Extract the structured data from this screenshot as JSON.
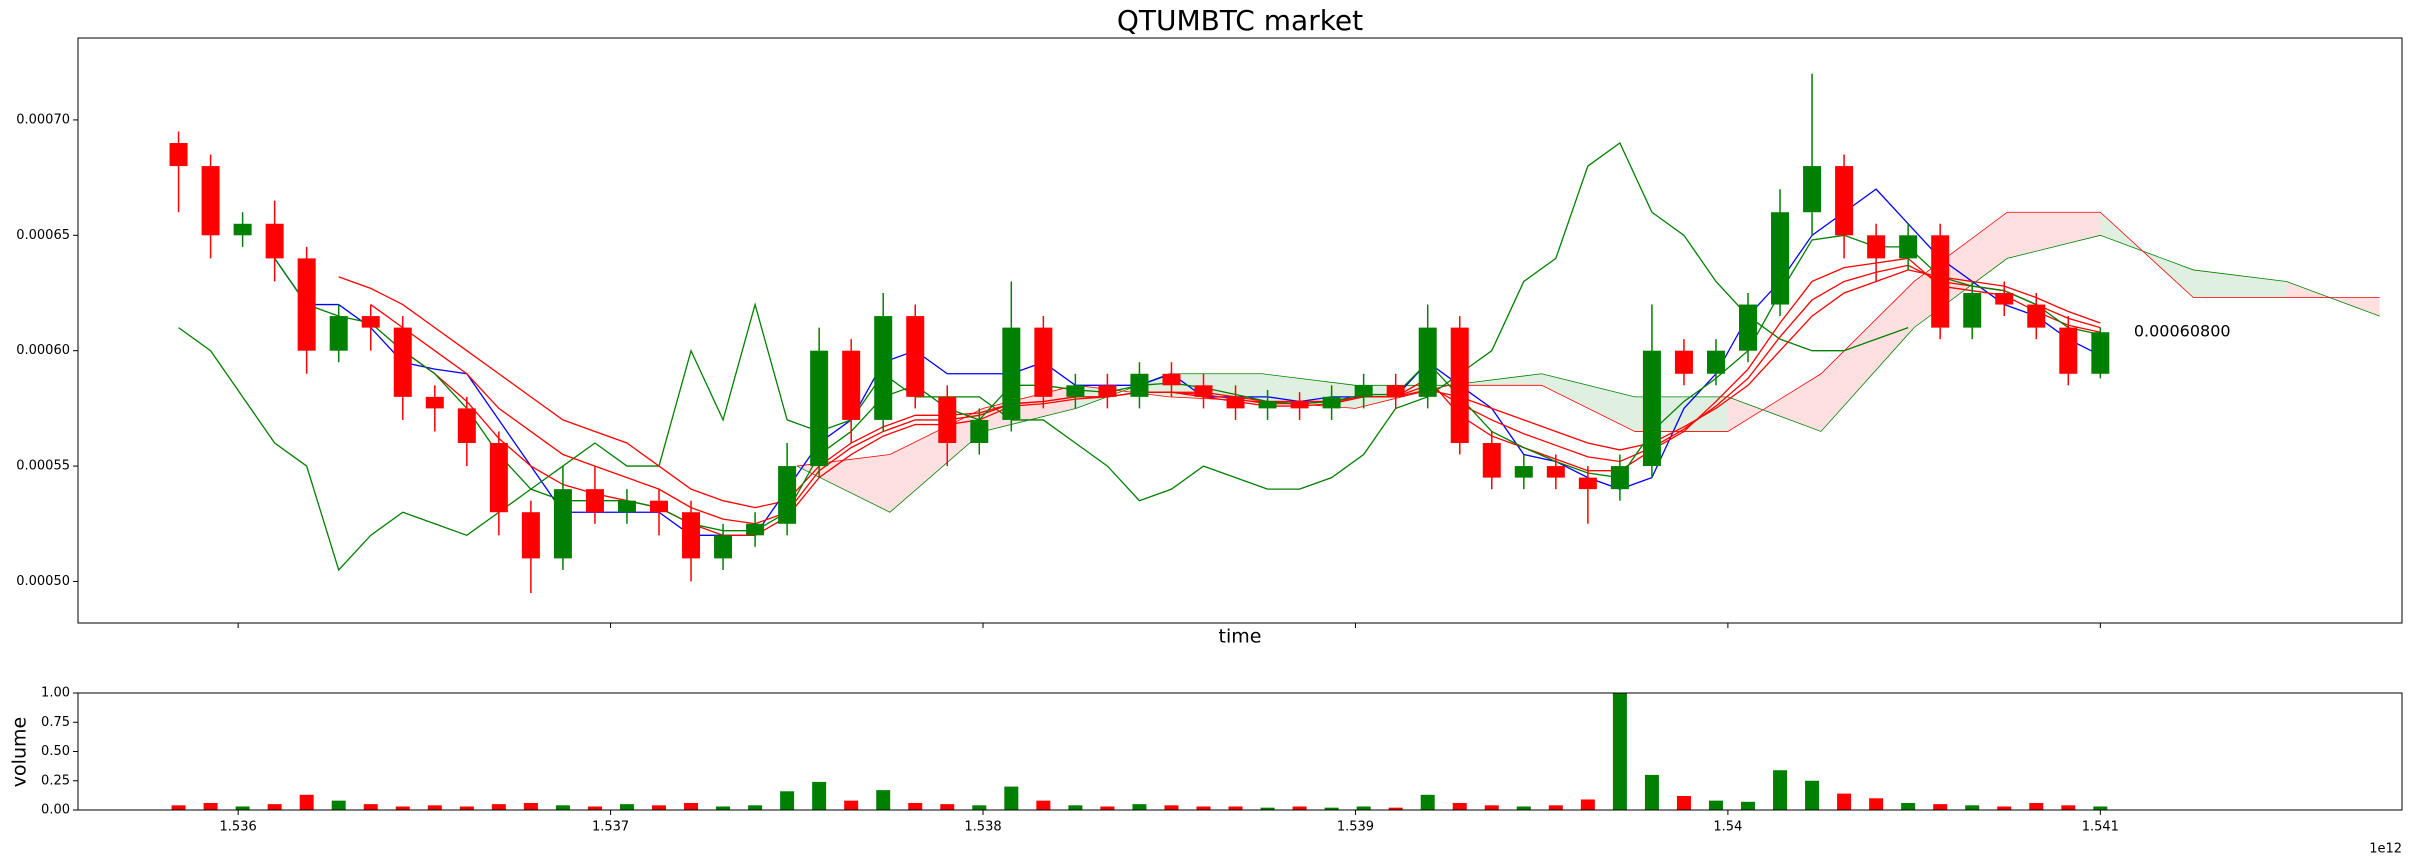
{
  "chart_data": [
    {
      "type": "candlestick",
      "title": "QTUMBTC market",
      "xlabel": "time",
      "xlim": [
        1.53557,
        1.54181
      ],
      "xticks": [
        1.536,
        1.537,
        1.538,
        1.539,
        1.54,
        1.541
      ],
      "ylim": [
        0.000482,
        0.0007355
      ],
      "yticks": [
        {
          "value": 0.0005,
          "label": "0.00050"
        },
        {
          "value": 0.00055,
          "label": "0.00055"
        },
        {
          "value": 0.0006,
          "label": "0.00060"
        },
        {
          "value": 0.00065,
          "label": "0.00065"
        },
        {
          "value": 0.0007,
          "label": "0.00070"
        }
      ],
      "up_color": "#008000",
      "down_color": "#ff0000",
      "x": [
        1.53584,
        1.535926,
        1.536012,
        1.536098,
        1.536184,
        1.53627,
        1.536356,
        1.536442,
        1.536528,
        1.536614,
        1.5367,
        1.536786,
        1.536872,
        1.536958,
        1.537044,
        1.53713,
        1.537216,
        1.537302,
        1.537388,
        1.537474,
        1.53756,
        1.537646,
        1.537732,
        1.537818,
        1.537904,
        1.53799,
        1.538076,
        1.538162,
        1.538248,
        1.538334,
        1.53842,
        1.538506,
        1.538592,
        1.538678,
        1.538764,
        1.53885,
        1.538936,
        1.539022,
        1.539108,
        1.539194,
        1.53928,
        1.539366,
        1.539452,
        1.539538,
        1.539624,
        1.53971,
        1.539796,
        1.539882,
        1.539968,
        1.540054,
        1.54014,
        1.540226,
        1.540312,
        1.540398,
        1.540484,
        1.54057,
        1.540656,
        1.540742,
        1.540828,
        1.540914,
        1.541
      ],
      "open": [
        0.00069,
        0.00068,
        0.00065,
        0.000655,
        0.00064,
        0.0006,
        0.000615,
        0.00061,
        0.00058,
        0.000575,
        0.00056,
        0.00053,
        0.00051,
        0.00054,
        0.00053,
        0.000535,
        0.00053,
        0.00051,
        0.00052,
        0.000525,
        0.00055,
        0.0006,
        0.00057,
        0.000615,
        0.00058,
        0.00056,
        0.00057,
        0.00061,
        0.00058,
        0.000585,
        0.00058,
        0.00059,
        0.000585,
        0.00058,
        0.000575,
        0.000578,
        0.000575,
        0.00058,
        0.000585,
        0.00058,
        0.00061,
        0.00056,
        0.000545,
        0.00055,
        0.000545,
        0.00054,
        0.00055,
        0.0006,
        0.00059,
        0.0006,
        0.00062,
        0.00066,
        0.00068,
        0.00065,
        0.00064,
        0.00065,
        0.00061,
        0.000625,
        0.00062,
        0.00061,
        0.00059
      ],
      "close": [
        0.00068,
        0.00065,
        0.000655,
        0.00064,
        0.0006,
        0.000615,
        0.00061,
        0.00058,
        0.000575,
        0.00056,
        0.00053,
        0.00051,
        0.00054,
        0.00053,
        0.000535,
        0.00053,
        0.00051,
        0.00052,
        0.000525,
        0.00055,
        0.0006,
        0.00057,
        0.000615,
        0.00058,
        0.00056,
        0.00057,
        0.00061,
        0.00058,
        0.000585,
        0.00058,
        0.00059,
        0.000585,
        0.00058,
        0.000575,
        0.000578,
        0.000575,
        0.00058,
        0.000585,
        0.00058,
        0.00061,
        0.00056,
        0.000545,
        0.00055,
        0.000545,
        0.00054,
        0.00055,
        0.0006,
        0.00059,
        0.0006,
        0.00062,
        0.00066,
        0.00068,
        0.00065,
        0.00064,
        0.00065,
        0.00061,
        0.000625,
        0.00062,
        0.00061,
        0.00059,
        0.000608
      ],
      "high": [
        0.000695,
        0.000685,
        0.00066,
        0.000665,
        0.000645,
        0.00062,
        0.00062,
        0.000615,
        0.000585,
        0.00058,
        0.000565,
        0.000535,
        0.00055,
        0.00055,
        0.00054,
        0.00054,
        0.000535,
        0.000525,
        0.00053,
        0.00056,
        0.00061,
        0.000605,
        0.000625,
        0.00062,
        0.000585,
        0.000575,
        0.00063,
        0.000615,
        0.00059,
        0.00059,
        0.000595,
        0.000595,
        0.00059,
        0.000585,
        0.000583,
        0.000582,
        0.000585,
        0.00059,
        0.00059,
        0.00062,
        0.000615,
        0.000565,
        0.000555,
        0.000555,
        0.00055,
        0.000555,
        0.00062,
        0.000605,
        0.000605,
        0.000625,
        0.00067,
        0.00072,
        0.000685,
        0.000655,
        0.000655,
        0.000655,
        0.00063,
        0.00063,
        0.000625,
        0.000615,
        0.00061
      ],
      "low": [
        0.00066,
        0.00064,
        0.000645,
        0.00063,
        0.00059,
        0.000595,
        0.0006,
        0.00057,
        0.000565,
        0.00055,
        0.00052,
        0.000495,
        0.000505,
        0.000525,
        0.000525,
        0.00052,
        0.0005,
        0.000505,
        0.000515,
        0.00052,
        0.000545,
        0.00056,
        0.000565,
        0.000575,
        0.00055,
        0.000555,
        0.000565,
        0.000575,
        0.000575,
        0.000575,
        0.000575,
        0.00058,
        0.000575,
        0.00057,
        0.00057,
        0.00057,
        0.00057,
        0.000575,
        0.000575,
        0.000575,
        0.000555,
        0.00054,
        0.00054,
        0.00054,
        0.000525,
        0.000535,
        0.000545,
        0.000585,
        0.000585,
        0.000595,
        0.000615,
        0.00065,
        0.00064,
        0.00063,
        0.000635,
        0.000605,
        0.000605,
        0.000615,
        0.000605,
        0.000585,
        0.000588
      ],
      "lines": [
        {
          "color": "#0000ff",
          "values": [
            null,
            null,
            null,
            0.00064,
            0.00062,
            0.00062,
            0.00061,
            0.000595,
            0.000592,
            0.00059,
            0.00057,
            0.00055,
            0.00053,
            0.00053,
            0.00053,
            0.00053,
            0.00052,
            0.00052,
            0.00052,
            0.00054,
            0.00056,
            0.00057,
            0.000595,
            0.0006,
            0.00059,
            0.00059,
            0.00059,
            0.000595,
            0.000585,
            0.000585,
            0.000585,
            0.00059,
            0.00058,
            0.00058,
            0.00058,
            0.000578,
            0.00058,
            0.00058,
            0.00058,
            0.000595,
            0.000585,
            0.000575,
            0.000555,
            0.000552,
            0.000545,
            0.00054,
            0.000545,
            0.000575,
            0.00059,
            0.000615,
            0.00063,
            0.00065,
            0.00066,
            0.00067,
            0.000655,
            0.00064,
            0.00063,
            0.00062,
            0.000615,
            0.000605,
            0.000598
          ]
        },
        {
          "color": "#008000",
          "values": [
            0.00061,
            0.0006,
            0.00058,
            0.00056,
            0.00055,
            0.000505,
            0.00052,
            0.00053,
            0.000525,
            0.00052,
            0.00053,
            0.00054,
            0.00055,
            0.00056,
            0.00055,
            0.00055,
            0.0006,
            0.00057,
            0.00062,
            0.00057,
            0.000565,
            0.00057,
            0.00059,
            0.00058,
            0.00058,
            0.00058,
            0.00057,
            0.00057,
            0.00056,
            0.00055,
            0.000535,
            0.00054,
            0.00055,
            0.000545,
            0.00054,
            0.00054,
            0.000545,
            0.000555,
            0.000575,
            0.00058,
            0.00059,
            0.0006,
            0.00063,
            0.00064,
            0.00068,
            0.00069,
            0.00066,
            0.00065,
            0.00063,
            0.000615,
            0.000605,
            0.0006,
            0.0006,
            0.000605,
            0.00061,
            null,
            null,
            null,
            null,
            null,
            null
          ]
        },
        {
          "color": "#ff0000",
          "values": [
            null,
            null,
            null,
            null,
            null,
            0.000632,
            0.000627,
            0.00062,
            0.00061,
            0.0006,
            0.00059,
            0.00058,
            0.00057,
            0.000565,
            0.00056,
            0.00055,
            0.00054,
            0.000535,
            0.000532,
            0.000535,
            0.00055,
            0.00056,
            0.000567,
            0.000572,
            0.000572,
            0.000573,
            0.000577,
            0.000578,
            0.00058,
            0.00058,
            0.000582,
            0.000582,
            0.000582,
            0.00058,
            0.000578,
            0.000578,
            0.000578,
            0.00058,
            0.00058,
            0.000583,
            0.00058,
            0.000575,
            0.00057,
            0.000565,
            0.00056,
            0.000557,
            0.00056,
            0.000567,
            0.000575,
            0.000585,
            0.0006,
            0.000615,
            0.000625,
            0.00063,
            0.000635,
            0.000632,
            0.00063,
            0.000628,
            0.000623,
            0.000617,
            0.000612
          ]
        },
        {
          "color": "#ff0000",
          "values": [
            null,
            null,
            null,
            null,
            null,
            null,
            0.00062,
            0.00061,
            0.0006,
            0.00059,
            0.000575,
            0.000565,
            0.000555,
            0.00055,
            0.000545,
            0.00054,
            0.000532,
            0.000527,
            0.000525,
            0.00053,
            0.000548,
            0.000558,
            0.000565,
            0.00057,
            0.00057,
            0.000572,
            0.000577,
            0.000578,
            0.00058,
            0.00058,
            0.000582,
            0.000582,
            0.000581,
            0.000579,
            0.000577,
            0.000577,
            0.000578,
            0.00058,
            0.00058,
            0.000585,
            0.000577,
            0.00057,
            0.000564,
            0.000559,
            0.000554,
            0.000552,
            0.000558,
            0.000566,
            0.000576,
            0.000588,
            0.000606,
            0.000622,
            0.00063,
            0.000634,
            0.000637,
            0.00063,
            0.000628,
            0.000626,
            0.00062,
            0.000614,
            0.00061
          ]
        },
        {
          "color": "#ff0000",
          "values": [
            null,
            null,
            null,
            null,
            null,
            null,
            null,
            0.0006,
            0.00059,
            0.000578,
            0.000562,
            0.00055,
            0.000542,
            0.000538,
            0.000535,
            0.000532,
            0.000525,
            0.00052,
            0.00052,
            0.000528,
            0.000545,
            0.000555,
            0.000563,
            0.000568,
            0.000568,
            0.00057,
            0.000576,
            0.000577,
            0.000579,
            0.00058,
            0.000582,
            0.000582,
            0.00058,
            0.000578,
            0.000576,
            0.000576,
            0.000577,
            0.00058,
            0.00058,
            0.000588,
            0.000572,
            0.000563,
            0.000558,
            0.000553,
            0.000548,
            0.000548,
            0.000557,
            0.000565,
            0.000578,
            0.000592,
            0.000612,
            0.00063,
            0.000636,
            0.000638,
            0.00064,
            0.000628,
            0.000626,
            0.000624,
            0.000617,
            0.000611,
            0.000608
          ]
        },
        {
          "color": "#008000",
          "values": [
            null,
            null,
            null,
            0.00064,
            0.00062,
            0.000615,
            0.000612,
            0.0006,
            0.00059,
            0.000575,
            0.000555,
            0.00054,
            0.000535,
            0.000535,
            0.000535,
            0.000532,
            0.000525,
            0.000522,
            0.000522,
            0.00053,
            0.000555,
            0.000565,
            0.00058,
            0.000585,
            0.000575,
            0.00057,
            0.000585,
            0.000585,
            0.000583,
            0.000582,
            0.000585,
            0.000586,
            0.000584,
            0.000581,
            0.000578,
            0.000577,
            0.000578,
            0.000581,
            0.000581,
            0.000595,
            0.00058,
            0.000565,
            0.000558,
            0.000552,
            0.000547,
            0.000545,
            0.000565,
            0.000578,
            0.000588,
            0.0006,
            0.000625,
            0.000648,
            0.00065,
            0.000645,
            0.000645,
            0.000632,
            0.000628,
            0.000626,
            0.00062,
            0.00061,
            0.000607
          ]
        }
      ],
      "cloud": {
        "x": [
          1.5375,
          1.53775,
          1.538,
          1.53825,
          1.5385,
          1.53875,
          1.539,
          1.53925,
          1.5395,
          1.53975,
          1.54,
          1.54025,
          1.5405,
          1.54075,
          1.541,
          1.54125,
          1.5415,
          1.54175
        ],
        "span_a": {
          "color": "#008000",
          "values": [
            0.00055,
            0.00053,
            0.000565,
            0.000575,
            0.00059,
            0.00059,
            0.000585,
            0.000585,
            0.00059,
            0.00058,
            0.00058,
            0.000565,
            0.00061,
            0.00064,
            0.00065,
            0.000635,
            0.00063,
            0.000615
          ]
        },
        "span_b": {
          "color": "#ff0000",
          "values": [
            0.00055,
            0.000555,
            0.000575,
            0.000585,
            0.00058,
            0.000578,
            0.000575,
            0.000585,
            0.000585,
            0.000565,
            0.000565,
            0.00059,
            0.00063,
            0.00066,
            0.00066,
            0.000623,
            0.000623,
            0.000623
          ]
        }
      },
      "annotation": {
        "x": 1.54109,
        "value": 0.000608,
        "label": "0.00060800"
      }
    },
    {
      "type": "bar",
      "ylabel": "volume",
      "x_offset_label": "1e12",
      "xlim": [
        1.53557,
        1.54181
      ],
      "xticks": [
        1.536,
        1.537,
        1.538,
        1.539,
        1.54,
        1.541
      ],
      "ylim": [
        0,
        1
      ],
      "yticks": [
        {
          "value": 0,
          "label": "0.00"
        },
        {
          "value": 0.25,
          "label": "0.25"
        },
        {
          "value": 0.5,
          "label": "0.50"
        },
        {
          "value": 0.75,
          "label": "0.75"
        },
        {
          "value": 1,
          "label": "1.00"
        }
      ],
      "values": [
        0.04,
        0.06,
        0.03,
        0.05,
        0.13,
        0.08,
        0.05,
        0.03,
        0.04,
        0.03,
        0.05,
        0.06,
        0.04,
        0.03,
        0.05,
        0.04,
        0.06,
        0.03,
        0.04,
        0.16,
        0.24,
        0.08,
        0.17,
        0.06,
        0.05,
        0.04,
        0.2,
        0.08,
        0.04,
        0.03,
        0.05,
        0.04,
        0.03,
        0.03,
        0.02,
        0.03,
        0.02,
        0.03,
        0.02,
        0.13,
        0.06,
        0.04,
        0.03,
        0.04,
        0.09,
        1,
        0.3,
        0.12,
        0.08,
        0.07,
        0.34,
        0.25,
        0.14,
        0.1,
        0.06,
        0.05,
        0.04,
        0.03,
        0.06,
        0.04,
        0.03
      ]
    }
  ]
}
